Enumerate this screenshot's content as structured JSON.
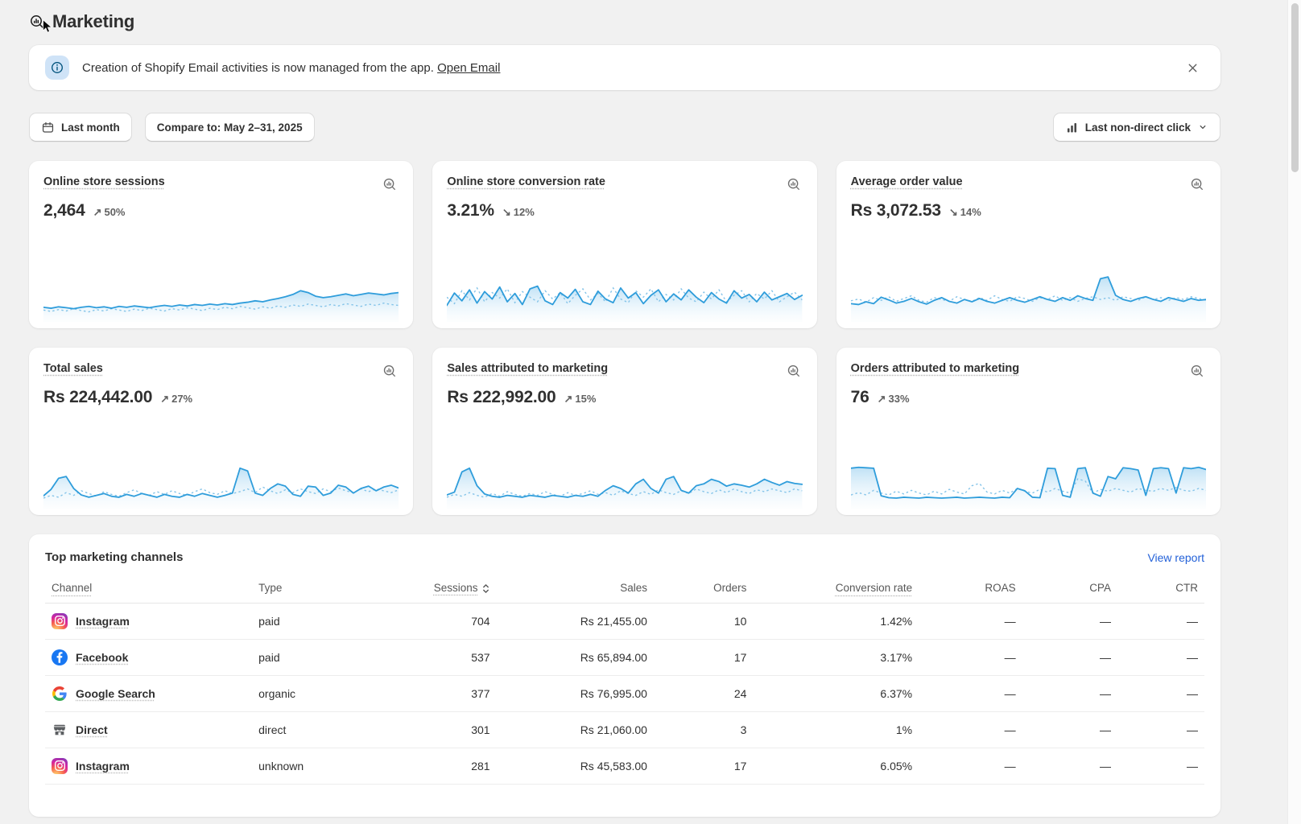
{
  "page": {
    "title": "Marketing"
  },
  "banner": {
    "text": "Creation of Shopify Email activities is now managed from the app.",
    "link_label": "Open Email"
  },
  "filters": {
    "date_range_label": "Last month",
    "compare_label": "Compare to: May 2–31, 2025",
    "attribution_label": "Last non-direct click"
  },
  "colors": {
    "sparkline_current": "#2f9ddb",
    "sparkline_previous": "#85c4e9",
    "link_blue": "#2361d8",
    "background": "#f1f1f1"
  },
  "metrics": [
    {
      "title": "Online store sessions",
      "value": "2,464",
      "arrow": "↗",
      "direction": "up",
      "change": "50%",
      "sparkline": {
        "current": [
          24,
          22,
          25,
          23,
          21,
          24,
          26,
          23,
          25,
          22,
          26,
          24,
          27,
          25,
          23,
          26,
          28,
          26,
          29,
          27,
          30,
          28,
          31,
          29,
          32,
          30,
          33,
          35,
          38,
          36,
          40,
          43,
          47,
          52,
          60,
          56,
          48,
          45,
          47,
          50,
          53,
          49,
          52,
          55,
          53,
          51,
          54,
          56
        ],
        "previous": [
          18,
          15,
          19,
          16,
          21,
          17,
          14,
          19,
          16,
          21,
          18,
          15,
          20,
          17,
          22,
          19,
          16,
          21,
          18,
          23,
          20,
          17,
          22,
          19,
          24,
          21,
          26,
          23,
          20,
          25,
          22,
          27,
          24,
          29,
          26,
          31,
          28,
          25,
          30,
          27,
          32,
          29,
          26,
          31,
          28,
          33,
          30,
          28
        ]
      }
    },
    {
      "title": "Online store conversion rate",
      "value": "3.21%",
      "arrow": "↘",
      "direction": "down",
      "change": "12%",
      "sparkline": {
        "current": [
          28,
          55,
          38,
          62,
          33,
          58,
          42,
          68,
          36,
          54,
          30,
          64,
          70,
          38,
          30,
          56,
          44,
          63,
          36,
          30,
          59,
          42,
          34,
          66,
          44,
          56,
          32,
          50,
          62,
          36,
          53,
          40,
          62,
          46,
          34,
          56,
          42,
          33,
          60,
          44,
          52,
          36,
          57,
          40,
          47,
          54,
          41,
          50
        ],
        "previous": [
          46,
          32,
          60,
          40,
          66,
          36,
          56,
          44,
          64,
          34,
          58,
          46,
          36,
          60,
          42,
          56,
          32,
          50,
          64,
          40,
          54,
          36,
          66,
          42,
          34,
          60,
          46,
          64,
          36,
          52,
          40,
          64,
          44,
          36,
          57,
          42,
          62,
          36,
          50,
          60,
          36,
          54,
          42,
          60,
          36,
          47,
          57,
          40
        ]
      }
    },
    {
      "title": "Average order value",
      "value": "Rs 3,072.53",
      "arrow": "↘",
      "direction": "down",
      "change": "14%",
      "sparkline": {
        "current": [
          32,
          30,
          36,
          32,
          46,
          40,
          33,
          37,
          43,
          36,
          31,
          39,
          45,
          37,
          33,
          41,
          36,
          43,
          37,
          33,
          39,
          45,
          39,
          35,
          41,
          47,
          41,
          37,
          45,
          39,
          49,
          43,
          39,
          86,
          90,
          50,
          41,
          37,
          43,
          47,
          41,
          37,
          45,
          41,
          37,
          43,
          39,
          41
        ],
        "previous": [
          38,
          42,
          35,
          45,
          39,
          47,
          37,
          43,
          49,
          39,
          35,
          45,
          41,
          37,
          47,
          41,
          37,
          45,
          39,
          49,
          41,
          37,
          47,
          43,
          37,
          45,
          41,
          49,
          39,
          45,
          37,
          43,
          47,
          41,
          45,
          39,
          47,
          43,
          39,
          47,
          41,
          45,
          39,
          45,
          41,
          47,
          43,
          39
        ]
      }
    },
    {
      "title": "Total sales",
      "value": "Rs 224,442.00",
      "arrow": "↗",
      "direction": "up",
      "change": "27%",
      "sparkline": {
        "current": [
          20,
          34,
          58,
          62,
          36,
          22,
          17,
          21,
          25,
          19,
          17,
          23,
          19,
          25,
          21,
          17,
          23,
          19,
          17,
          23,
          19,
          25,
          21,
          17,
          21,
          26,
          80,
          74,
          26,
          21,
          36,
          46,
          41,
          23,
          19,
          41,
          39,
          21,
          26,
          43,
          39,
          26,
          36,
          41,
          31,
          39,
          43,
          37
        ],
        "previous": [
          15,
          21,
          17,
          27,
          21,
          31,
          25,
          19,
          29,
          23,
          19,
          27,
          33,
          25,
          21,
          29,
          23,
          31,
          25,
          21,
          29,
          35,
          27,
          23,
          31,
          25,
          29,
          35,
          27,
          39,
          31,
          25,
          33,
          27,
          35,
          29,
          25,
          35,
          29,
          37,
          31,
          27,
          35,
          29,
          35,
          31,
          27,
          33
        ]
      }
    },
    {
      "title": "Sales attributed to marketing",
      "value": "Rs 222,992.00",
      "arrow": "↗",
      "direction": "up",
      "change": "15%",
      "sparkline": {
        "current": [
          22,
          28,
          72,
          80,
          42,
          24,
          19,
          17,
          21,
          19,
          17,
          21,
          19,
          17,
          21,
          19,
          17,
          21,
          19,
          23,
          19,
          32,
          42,
          36,
          26,
          46,
          56,
          36,
          26,
          56,
          62,
          32,
          26,
          42,
          46,
          56,
          51,
          41,
          46,
          43,
          39,
          46,
          56,
          49,
          43,
          51,
          47,
          45
        ],
        "previous": [
          17,
          23,
          19,
          27,
          21,
          17,
          25,
          19,
          29,
          23,
          19,
          25,
          21,
          29,
          23,
          19,
          27,
          21,
          25,
          31,
          23,
          27,
          21,
          31,
          25,
          21,
          29,
          23,
          33,
          27,
          23,
          31,
          25,
          35,
          29,
          25,
          33,
          27,
          35,
          29,
          25,
          33,
          29,
          35,
          31,
          27,
          35,
          31
        ]
      }
    },
    {
      "title": "Orders attributed to marketing",
      "value": "76",
      "arrow": "↗",
      "direction": "up",
      "change": "33%",
      "sparkline": {
        "current": [
          80,
          82,
          81,
          80,
          20,
          16,
          15,
          17,
          16,
          15,
          17,
          16,
          15,
          16,
          17,
          15,
          16,
          17,
          16,
          15,
          17,
          16,
          36,
          31,
          17,
          16,
          80,
          79,
          21,
          17,
          79,
          81,
          26,
          19,
          62,
          57,
          81,
          79,
          76,
          21,
          79,
          81,
          79,
          26,
          81,
          79,
          82,
          77
        ],
        "previous": [
          22,
          27,
          22,
          32,
          26,
          22,
          30,
          24,
          32,
          26,
          22,
          30,
          24,
          34,
          28,
          24,
          42,
          47,
          28,
          24,
          32,
          26,
          36,
          30,
          26,
          34,
          28,
          36,
          30,
          26,
          57,
          52,
          26,
          34,
          30,
          36,
          32,
          28,
          36,
          32,
          30,
          36,
          32,
          38,
          32,
          30,
          36,
          32
        ]
      }
    }
  ],
  "channels_table": {
    "title": "Top marketing channels",
    "view_report_label": "View report",
    "columns": [
      "Channel",
      "Type",
      "Sessions",
      "Sales",
      "Orders",
      "Conversion rate",
      "ROAS",
      "CPA",
      "CTR"
    ],
    "rows": [
      {
        "channel": "Instagram",
        "icon": "instagram-icon",
        "type": "paid",
        "sessions": "704",
        "sales": "Rs 21,455.00",
        "orders": "10",
        "conversion_rate": "1.42%",
        "roas": "—",
        "cpa": "—",
        "ctr": "—"
      },
      {
        "channel": "Facebook",
        "icon": "facebook-icon",
        "type": "paid",
        "sessions": "537",
        "sales": "Rs 65,894.00",
        "orders": "17",
        "conversion_rate": "3.17%",
        "roas": "—",
        "cpa": "—",
        "ctr": "—"
      },
      {
        "channel": "Google Search",
        "icon": "google-icon",
        "type": "organic",
        "sessions": "377",
        "sales": "Rs 76,995.00",
        "orders": "24",
        "conversion_rate": "6.37%",
        "roas": "—",
        "cpa": "—",
        "ctr": "—"
      },
      {
        "channel": "Direct",
        "icon": "storefront-icon",
        "type": "direct",
        "sessions": "301",
        "sales": "Rs 21,060.00",
        "orders": "3",
        "conversion_rate": "1%",
        "roas": "—",
        "cpa": "—",
        "ctr": "—"
      },
      {
        "channel": "Instagram",
        "icon": "instagram-icon",
        "type": "unknown",
        "sessions": "281",
        "sales": "Rs 45,583.00",
        "orders": "17",
        "conversion_rate": "6.05%",
        "roas": "—",
        "cpa": "—",
        "ctr": "—"
      }
    ]
  }
}
